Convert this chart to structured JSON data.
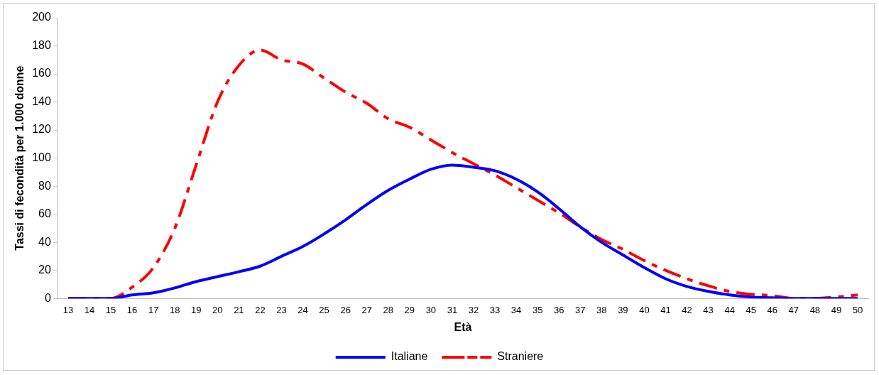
{
  "chart_data": {
    "type": "line",
    "xlabel": "Età",
    "ylabel": "Tassi di fecondità per 1.000 donne",
    "categories": [
      "13",
      "14",
      "15",
      "16",
      "17",
      "18",
      "19",
      "20",
      "21",
      "22",
      "23",
      "24",
      "25",
      "26",
      "27",
      "28",
      "29",
      "30",
      "31",
      "32",
      "33",
      "34",
      "35",
      "36",
      "37",
      "38",
      "39",
      "40",
      "41",
      "42",
      "43",
      "44",
      "45",
      "46",
      "47",
      "48",
      "49",
      "50"
    ],
    "series": [
      {
        "name": "Italiane",
        "color": "#0000ff",
        "line_style": "solid",
        "values": [
          0,
          0,
          0,
          2.5,
          4,
          7.5,
          12,
          15.5,
          19,
          23,
          30,
          37,
          46,
          56,
          67,
          77,
          85,
          92,
          95,
          93.5,
          91,
          85,
          76,
          64,
          51,
          40,
          31,
          22,
          14,
          8.5,
          5,
          2.5,
          1,
          0.5,
          0,
          0,
          0,
          0
        ]
      },
      {
        "name": "Straniere",
        "color": "#ff0000",
        "line_style": "dashed",
        "values": [
          0,
          0,
          0,
          8,
          22,
          50,
          95,
          140,
          166,
          177,
          170,
          167,
          157,
          147,
          139,
          128,
          122,
          113,
          104,
          96,
          88,
          79,
          70,
          61,
          51,
          42,
          35,
          27,
          20,
          14,
          9,
          5,
          3,
          2,
          0,
          0,
          1,
          2.5
        ]
      }
    ],
    "ylim": [
      0,
      200
    ],
    "yticks": [
      0,
      20,
      40,
      60,
      80,
      100,
      120,
      140,
      160,
      180,
      200
    ],
    "grid": false,
    "legend": "bottom",
    "marker": "none"
  }
}
